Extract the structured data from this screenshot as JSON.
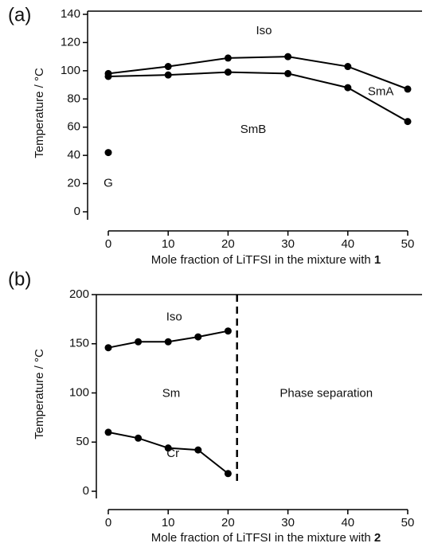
{
  "chart_data": [
    {
      "type": "line",
      "panel_label": "(a)",
      "ylabel": "Temperature / °C",
      "xlabel": "Mole fraction of LiTFSI in the mixture with",
      "xlabel_emphasis": "1",
      "xlim": [
        0,
        50
      ],
      "ylim": [
        0,
        140
      ],
      "xticks": [
        0,
        10,
        20,
        30,
        40,
        50
      ],
      "yticks": [
        0,
        20,
        40,
        60,
        80,
        100,
        120,
        140
      ],
      "series": [
        {
          "x": [
            0,
            10,
            20,
            30,
            40,
            50
          ],
          "values": [
            98,
            103,
            109,
            110,
            103,
            87
          ],
          "color": "#000000"
        },
        {
          "x": [
            0,
            10,
            20,
            30,
            40,
            50
          ],
          "values": [
            96,
            97,
            99,
            98,
            88,
            64
          ],
          "color": "#000000"
        },
        {
          "x": [
            0
          ],
          "values": [
            42
          ],
          "color": "#000000"
        }
      ],
      "annotations": [
        {
          "text": "Iso",
          "x": 26,
          "y": 128
        },
        {
          "text": "SmA",
          "x": 45.5,
          "y": 85
        },
        {
          "text": "SmB",
          "x": 24.2,
          "y": 58
        },
        {
          "text": "G",
          "x": 0,
          "y": 20
        }
      ]
    },
    {
      "type": "line",
      "panel_label": "(b)",
      "ylabel": "Temperature / °C",
      "xlabel": "Mole fraction of LiTFSI in the mixture with",
      "xlabel_emphasis": "2",
      "xlim": [
        0,
        50
      ],
      "ylim": [
        0,
        200
      ],
      "xticks": [
        0,
        10,
        20,
        30,
        40,
        50
      ],
      "yticks": [
        0,
        50,
        100,
        150,
        200
      ],
      "series": [
        {
          "x": [
            0,
            5,
            10,
            15,
            20
          ],
          "values": [
            146,
            152,
            152,
            157,
            163
          ],
          "color": "#000000"
        },
        {
          "x": [
            0,
            5,
            10,
            15,
            20
          ],
          "values": [
            60,
            54,
            44,
            42,
            18
          ],
          "color": "#000000"
        }
      ],
      "vline": 21.5,
      "annotations": [
        {
          "text": "Iso",
          "x": 11,
          "y": 177
        },
        {
          "text": "Sm",
          "x": 10.5,
          "y": 99
        },
        {
          "text": "Cr",
          "x": 10.8,
          "y": 38
        },
        {
          "text": "Phase separation",
          "x": 36.4,
          "y": 99
        }
      ]
    }
  ]
}
